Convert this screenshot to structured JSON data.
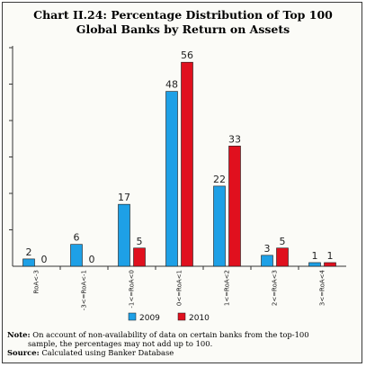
{
  "title_line1": "Chart II.24: Percentage Distribution of Top 100",
  "title_line2": "Global Banks by Return on Assets",
  "chart_data": {
    "type": "bar",
    "categories": [
      "RoA<-3",
      "-3<=RoA<-1",
      "-1<=RoA<0",
      "0<=RoA<1",
      "1<=RoA<2",
      "2<=RoA<3",
      "3<=RoA<4"
    ],
    "series": [
      {
        "name": "2009",
        "values": [
          2,
          6,
          17,
          48,
          22,
          3,
          1
        ],
        "color": "#1ea0e6"
      },
      {
        "name": "2010",
        "values": [
          0,
          0,
          5,
          56,
          33,
          5,
          1
        ],
        "color": "#e0101e"
      }
    ],
    "ylim": [
      0,
      60
    ],
    "ygrid_step": 10,
    "legend_position": "bottom",
    "grid": false
  },
  "notes": {
    "note_label": "Note:",
    "note_line1": "On account of non-availability of data on certain banks from the top-100",
    "note_line2": "sample, the percentages may not add up to 100.",
    "source_label": "Source:",
    "source_text": "Calculated using Banker Database"
  }
}
